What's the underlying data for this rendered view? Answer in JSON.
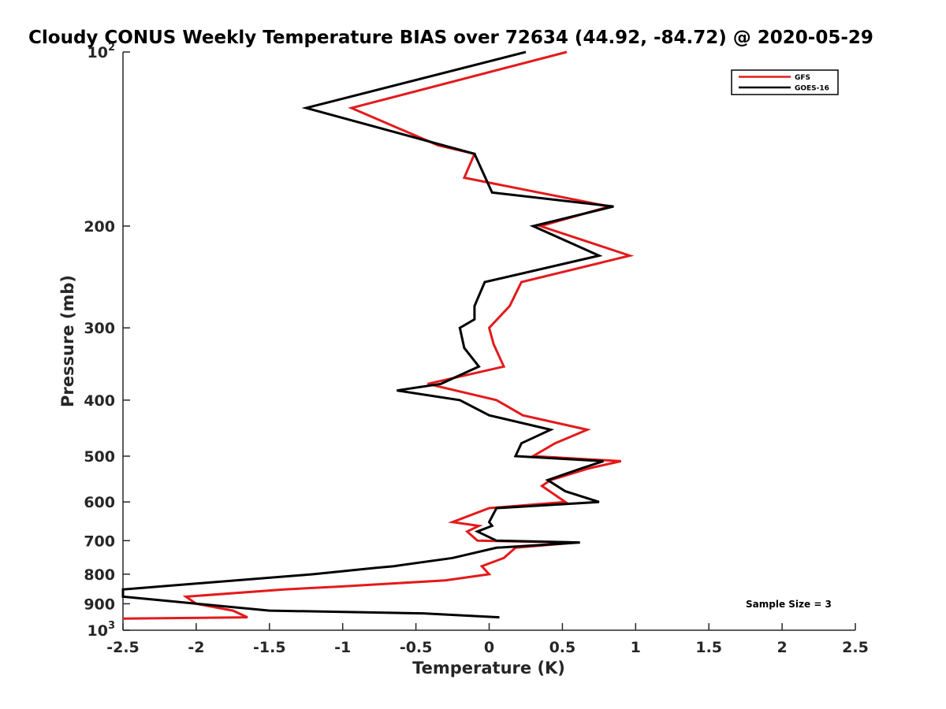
{
  "chart_data": {
    "type": "line",
    "title": "Cloudy CONUS Weekly Temperature BIAS over 72634 (44.92, -84.72) @ 2020-05-29",
    "xlabel": "Temperature (K)",
    "ylabel": "Pressure (mb)",
    "xlim": [
      -2.5,
      2.5
    ],
    "ylim": [
      1000,
      100
    ],
    "y_scale": "log",
    "y_reversed": true,
    "grid": false,
    "legend_position": "top-right",
    "x_ticks": [
      "-2.5",
      "-2",
      "-1.5",
      "-1",
      "-0.5",
      "0",
      "0.5",
      "1",
      "1.5",
      "2",
      "2.5"
    ],
    "y_ticks": [
      {
        "value": 100,
        "base": "10",
        "exp": "2"
      },
      {
        "value": 200,
        "label": "200"
      },
      {
        "value": 300,
        "label": "300"
      },
      {
        "value": 400,
        "label": "400"
      },
      {
        "value": 500,
        "label": "500"
      },
      {
        "value": 600,
        "label": "600"
      },
      {
        "value": 700,
        "label": "700"
      },
      {
        "value": 800,
        "label": "800"
      },
      {
        "value": 900,
        "label": "900"
      },
      {
        "value": 1000,
        "base": "10",
        "exp": "3"
      }
    ],
    "annotation": "Sample Size = 3",
    "series": [
      {
        "name": "GFS",
        "color": "#e31a1c",
        "points": [
          [
            0.53,
            100
          ],
          [
            -0.94,
            125
          ],
          [
            -0.35,
            145
          ],
          [
            -0.1,
            150
          ],
          [
            -0.17,
            165
          ],
          [
            0.82,
            185
          ],
          [
            0.35,
            200
          ],
          [
            0.96,
            225
          ],
          [
            0.22,
            250
          ],
          [
            0.14,
            275
          ],
          [
            0.0,
            300
          ],
          [
            0.03,
            320
          ],
          [
            0.1,
            350
          ],
          [
            -0.42,
            375
          ],
          [
            0.05,
            400
          ],
          [
            0.23,
            425
          ],
          [
            0.67,
            450
          ],
          [
            0.45,
            475
          ],
          [
            0.3,
            500
          ],
          [
            0.9,
            510
          ],
          [
            0.68,
            525
          ],
          [
            0.42,
            550
          ],
          [
            0.36,
            563
          ],
          [
            0.52,
            600
          ],
          [
            0.0,
            615
          ],
          [
            -0.25,
            650
          ],
          [
            -0.07,
            660
          ],
          [
            -0.15,
            675
          ],
          [
            -0.08,
            700
          ],
          [
            0.6,
            705
          ],
          [
            0.18,
            720
          ],
          [
            0.1,
            750
          ],
          [
            -0.05,
            775
          ],
          [
            0.0,
            800
          ],
          [
            -0.3,
            820
          ],
          [
            -1.0,
            840
          ],
          [
            -1.4,
            850
          ],
          [
            -2.07,
            875
          ],
          [
            -2.0,
            900
          ],
          [
            -1.75,
            925
          ],
          [
            -1.65,
            950
          ],
          [
            -2.5,
            955
          ]
        ]
      },
      {
        "name": "GOES-16",
        "color": "#000000",
        "points": [
          [
            0.25,
            100
          ],
          [
            -1.25,
            125
          ],
          [
            -0.1,
            150
          ],
          [
            -0.05,
            160
          ],
          [
            0.02,
            175
          ],
          [
            0.85,
            185
          ],
          [
            0.3,
            200
          ],
          [
            0.75,
            225
          ],
          [
            -0.03,
            250
          ],
          [
            -0.1,
            275
          ],
          [
            -0.1,
            290
          ],
          [
            -0.2,
            300
          ],
          [
            -0.17,
            325
          ],
          [
            -0.07,
            350
          ],
          [
            -0.33,
            375
          ],
          [
            -0.63,
            385
          ],
          [
            -0.2,
            400
          ],
          [
            0.0,
            425
          ],
          [
            0.42,
            450
          ],
          [
            0.22,
            475
          ],
          [
            0.18,
            500
          ],
          [
            0.78,
            510
          ],
          [
            0.63,
            525
          ],
          [
            0.4,
            550
          ],
          [
            0.52,
            575
          ],
          [
            0.75,
            600
          ],
          [
            0.05,
            615
          ],
          [
            0.0,
            650
          ],
          [
            0.02,
            660
          ],
          [
            -0.08,
            675
          ],
          [
            0.05,
            700
          ],
          [
            0.62,
            705
          ],
          [
            0.05,
            720
          ],
          [
            -0.25,
            750
          ],
          [
            -0.65,
            775
          ],
          [
            -0.77,
            780
          ],
          [
            -1.2,
            800
          ],
          [
            -2.5,
            850
          ],
          [
            -2.5,
            875
          ],
          [
            -1.5,
            925
          ],
          [
            -0.45,
            935
          ],
          [
            0.07,
            950
          ]
        ]
      }
    ]
  }
}
